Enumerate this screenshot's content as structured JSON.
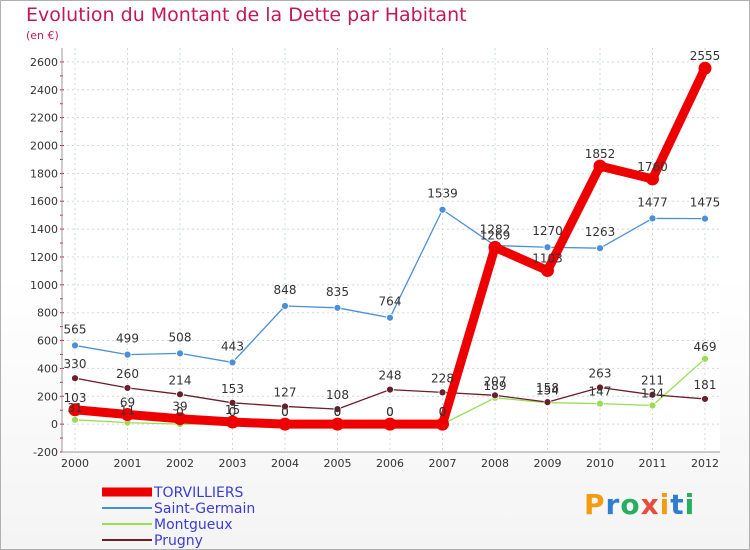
{
  "header": {
    "title": "Evolution du Montant de la Dette par Habitant",
    "subtitle": "(en €)"
  },
  "logo": {
    "text": "Proxiti",
    "letters": [
      "P",
      "r",
      "o",
      "x",
      "i",
      "t",
      "i"
    ],
    "colors": [
      "#f39c12",
      "#2e7dd1",
      "#27ae60",
      "#e74c3c",
      "#f39c12",
      "#2e7dd1",
      "#27ae60"
    ]
  },
  "chart_data": {
    "type": "line",
    "title": "Evolution du Montant de la Dette par Habitant",
    "subtitle": "(en €)",
    "x": [
      "2000",
      "2001",
      "2002",
      "2003",
      "2004",
      "2005",
      "2006",
      "2007",
      "2008",
      "2009",
      "2010",
      "2011",
      "2012"
    ],
    "yticks": [
      -200,
      0,
      200,
      400,
      600,
      800,
      1000,
      1200,
      1400,
      1600,
      1800,
      2000,
      2200,
      2400,
      2600
    ],
    "ylim": [
      -200,
      2700
    ],
    "grid": true,
    "legend_position": "bottom-left",
    "series": [
      {
        "name": "TORVILLIERS",
        "color": "#ee0000",
        "values": [
          103,
          69,
          39,
          15,
          0,
          0,
          0,
          0,
          1269,
          1103,
          1852,
          1760,
          2555
        ],
        "labels": [
          "103",
          "69",
          "39",
          "15",
          "0",
          "0",
          "0",
          "0",
          "1269",
          "1103",
          "1852",
          "1760",
          "2555"
        ]
      },
      {
        "name": "Saint-Germain",
        "color": "#4a90d9",
        "values": [
          565,
          499,
          508,
          443,
          848,
          835,
          764,
          1539,
          1282,
          1270,
          1263,
          1477,
          1475
        ],
        "labels": [
          "565",
          "499",
          "508",
          "443",
          "848",
          "835",
          "764",
          "1539",
          "1282",
          "1270",
          "1263",
          "1477",
          "1475"
        ]
      },
      {
        "name": "Montgueux",
        "color": "#99dd55",
        "values": [
          31,
          11,
          0,
          0,
          0,
          0,
          0,
          0,
          189,
          154,
          147,
          134,
          469
        ],
        "labels": [
          "31",
          "11",
          "0",
          "0",
          "0",
          "0",
          "0",
          "0",
          "189",
          "154",
          "147",
          "134",
          "469"
        ]
      },
      {
        "name": "Prugny",
        "color": "#6b1f2a",
        "values": [
          330,
          260,
          214,
          153,
          127,
          108,
          248,
          228,
          207,
          158,
          263,
          211,
          181
        ],
        "labels": [
          "330",
          "260",
          "214",
          "153",
          "127",
          "108",
          "248",
          "228",
          "207",
          "158",
          "263",
          "211",
          "181"
        ]
      }
    ]
  }
}
